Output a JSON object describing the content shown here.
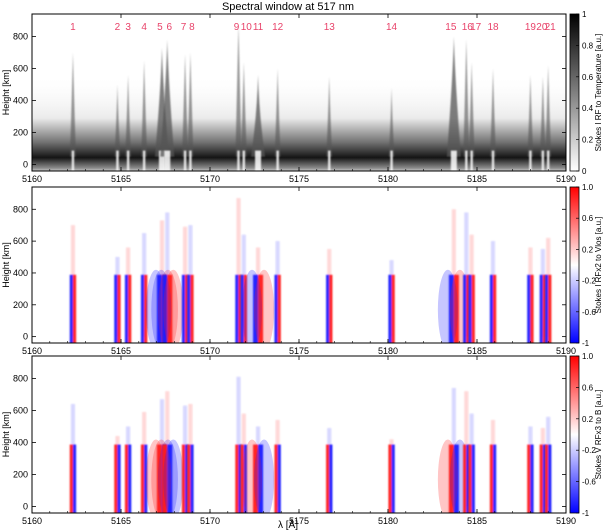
{
  "figure": {
    "title": "Spectral window at 517 nm",
    "xlabel": "λ [Å]",
    "ylabel": "Height [km]"
  },
  "chart_data": [
    {
      "type": "heatmap",
      "title": "Spectral window at 517 nm",
      "ylabel": "Height [km]",
      "xlim": [
        5160,
        5190
      ],
      "ylim": [
        -40,
        940
      ],
      "x_ticks": [
        "5160",
        "5165",
        "5170",
        "5175",
        "5180",
        "5185",
        "5190"
      ],
      "y_ticks": [
        "0",
        "200",
        "400",
        "600",
        "800"
      ],
      "colorbar": {
        "label": "Stokes I RF to Temperature [a.u.]",
        "range": [
          0,
          1
        ],
        "ticks": [
          "0",
          "0.2",
          "0.4",
          "0.6",
          "0.8",
          "1"
        ],
        "colormap": "white-to-black",
        "color_low": "#ffffff",
        "color_high": "#000000"
      },
      "line_labels": [
        "1",
        "2",
        "3",
        "4",
        "5",
        "6",
        "7",
        "8",
        "9",
        "10",
        "11",
        "12",
        "13",
        "14",
        "15",
        "16",
        "17",
        "18",
        "19",
        "20",
        "21"
      ],
      "line_label_color": "#e8436a",
      "line_wavelengths": [
        5162.3,
        5164.8,
        5165.4,
        5166.3,
        5167.3,
        5167.6,
        5168.6,
        5168.9,
        5171.6,
        5171.9,
        5172.7,
        5173.8,
        5176.7,
        5180.2,
        5183.7,
        5184.4,
        5184.7,
        5185.9,
        5188.0,
        5188.7,
        5189.0
      ],
      "line_peak_heights_km": [
        700,
        500,
        560,
        650,
        730,
        780,
        690,
        700,
        870,
        640,
        560,
        600,
        550,
        480,
        800,
        780,
        640,
        600,
        560,
        550,
        620
      ]
    },
    {
      "type": "heatmap",
      "ylabel": "Height [km]",
      "xlim": [
        5160,
        5190
      ],
      "ylim": [
        -40,
        940
      ],
      "x_ticks": [
        "5160",
        "5165",
        "5170",
        "5175",
        "5180",
        "5185",
        "5190"
      ],
      "y_ticks": [
        "0",
        "200",
        "400",
        "600",
        "800"
      ],
      "colorbar": {
        "label": "Stokes I RFx2 to Vlos [a.u.]",
        "range": [
          -1,
          1
        ],
        "ticks": [
          "-1",
          "-0.6",
          "-0.2",
          "0.2",
          "0.6",
          "1.0"
        ],
        "colormap": "blue-white-red",
        "color_low": "#0000ff",
        "color_mid": "#ffffff",
        "color_high": "#ff0000"
      }
    },
    {
      "type": "heatmap",
      "xlabel": "λ [Å]",
      "ylabel": "Height [km]",
      "xlim": [
        5160,
        5190
      ],
      "ylim": [
        -40,
        940
      ],
      "x_ticks": [
        "5160",
        "5165",
        "5170",
        "5175",
        "5180",
        "5185",
        "5190"
      ],
      "y_ticks": [
        "0",
        "200",
        "400",
        "600",
        "800"
      ],
      "colorbar": {
        "label": "Stokes V RFx3 to B [a.u.]",
        "range": [
          -1,
          1
        ],
        "ticks": [
          "-1",
          "-0.6",
          "-0.2",
          "0.2",
          "0.6",
          "1.0"
        ],
        "colormap": "blue-white-red",
        "color_low": "#0000ff",
        "color_mid": "#ffffff",
        "color_high": "#ff0000"
      }
    }
  ]
}
